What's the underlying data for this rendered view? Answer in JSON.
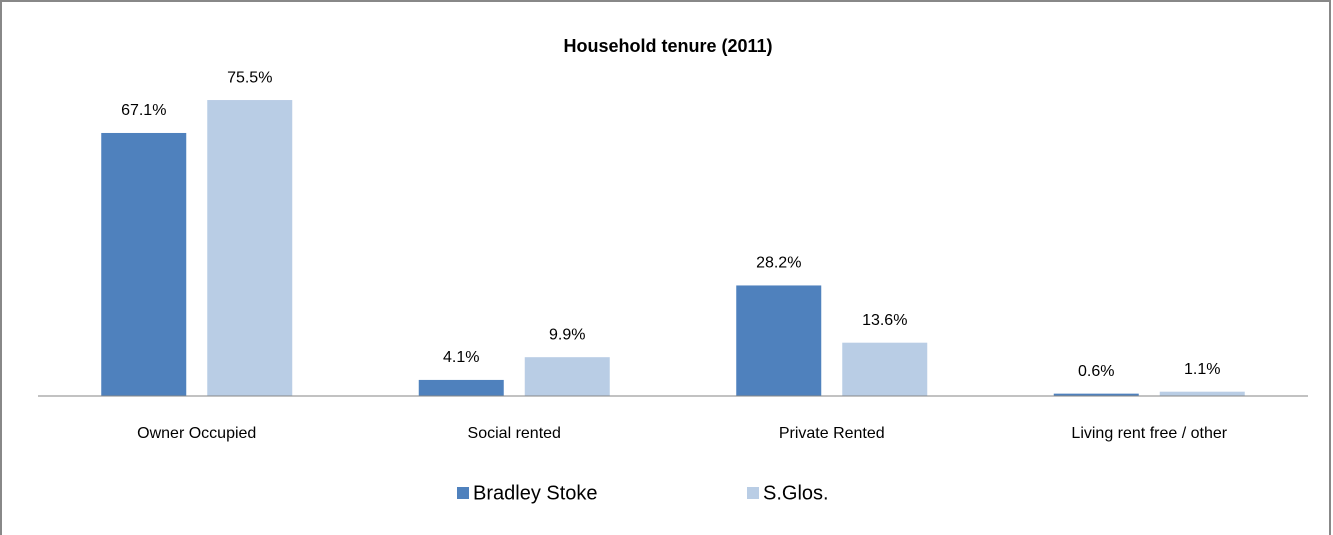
{
  "chart_data": {
    "type": "bar",
    "title": "Household tenure (2011)",
    "categories": [
      "Owner Occupied",
      "Social rented",
      "Private Rented",
      "Living rent free / other"
    ],
    "series": [
      {
        "name": "Bradley Stoke",
        "color": "#4f81bd",
        "values": [
          67.1,
          4.1,
          28.2,
          0.6
        ],
        "value_labels": [
          "67.1%",
          "4.1%",
          "28.2%",
          "0.6%"
        ]
      },
      {
        "name": "S.Glos.",
        "color": "#b9cde5",
        "values": [
          75.5,
          9.9,
          13.6,
          1.1
        ],
        "value_labels": [
          "75.5%",
          "9.9%",
          "13.6%",
          "1.1%"
        ]
      }
    ],
    "ylim": [
      0,
      80
    ],
    "legend": "bottom"
  }
}
